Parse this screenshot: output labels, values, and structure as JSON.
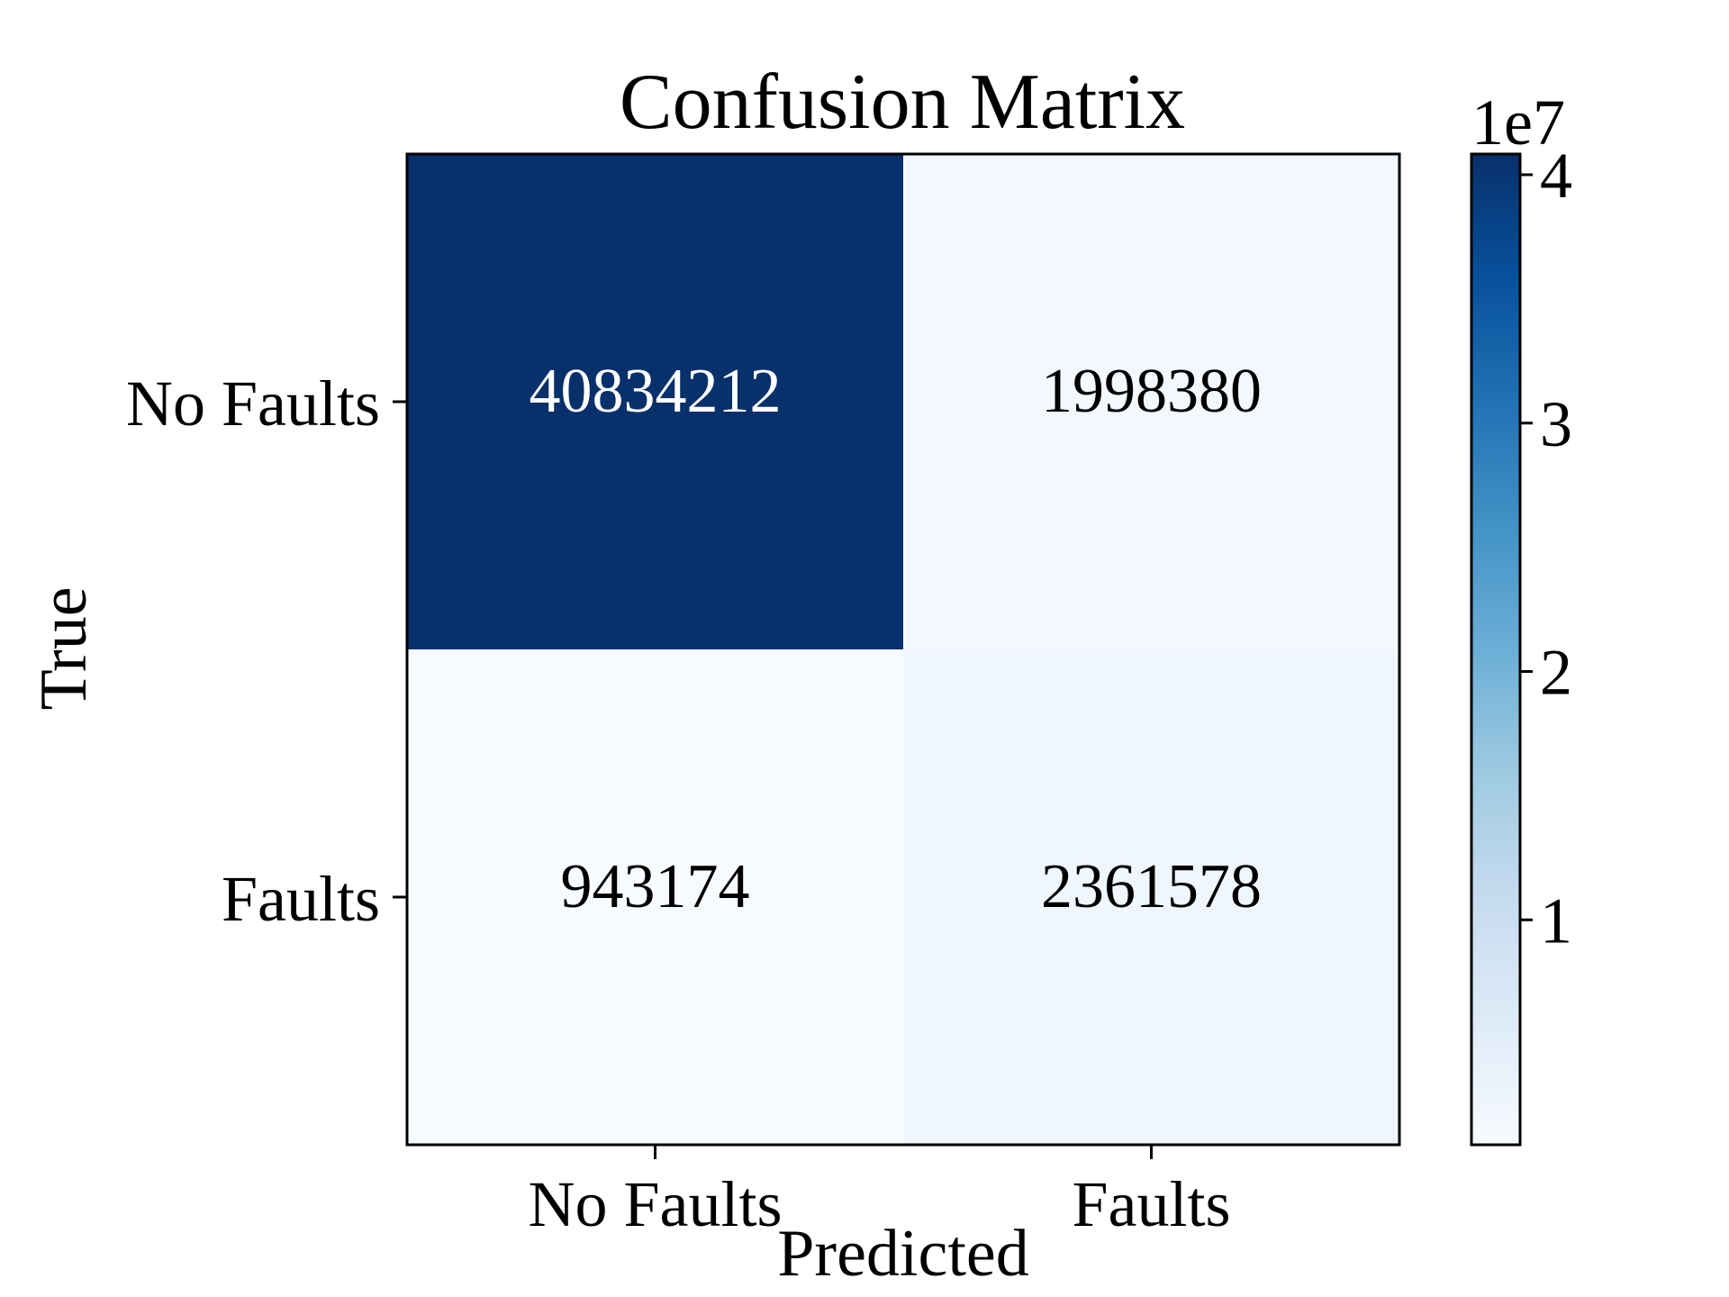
{
  "chart_data": {
    "type": "heatmap",
    "title": "Confusion Matrix",
    "xlabel": "Predicted",
    "ylabel": "True",
    "x_categories": [
      "No Faults",
      "Faults"
    ],
    "y_categories": [
      "No Faults",
      "Faults"
    ],
    "values": [
      [
        40834212,
        1998380
      ],
      [
        943174,
        2361578
      ]
    ],
    "value_labels": [
      [
        "40834212",
        "1998380"
      ],
      [
        "943174",
        "2361578"
      ]
    ],
    "colormap": "Blues",
    "colorbar": {
      "min": 943174,
      "max": 40834212,
      "ticks": [
        1,
        2,
        3,
        4
      ],
      "tick_labels": [
        "1",
        "2",
        "3",
        "4"
      ],
      "multiplier_label": "1e7",
      "scale": 10000000
    },
    "colors": {
      "dark_text": "#000000",
      "light_text": "#ffffff",
      "axis": "#000000"
    }
  }
}
